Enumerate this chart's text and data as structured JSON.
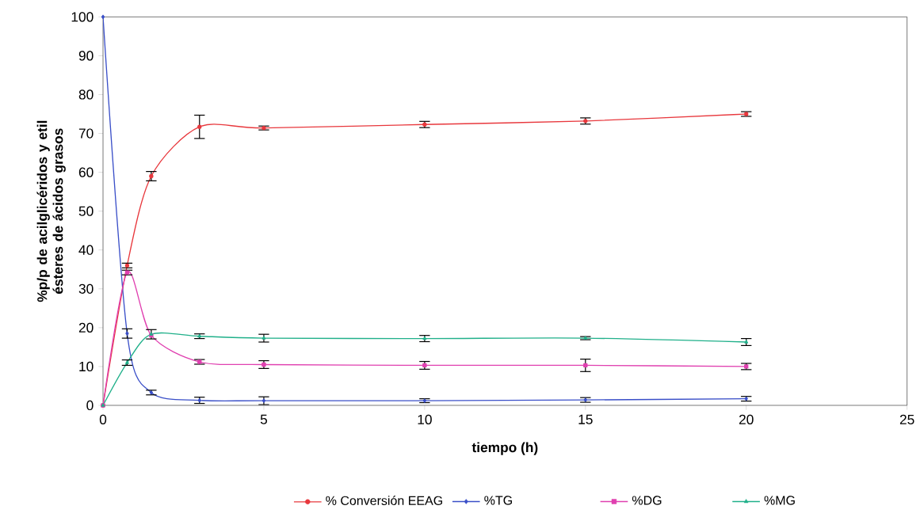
{
  "chart_data": {
    "type": "line",
    "xlabel": "tiempo (h)",
    "ylabel": "%p/p de acilglicéridos y etil ésteres de ácidos grasos",
    "x": [
      0,
      0.75,
      1.5,
      3,
      5,
      10,
      15,
      20
    ],
    "xlim": [
      0,
      25
    ],
    "xticks": [
      0,
      5,
      10,
      15,
      20,
      25
    ],
    "ylim": [
      0,
      100
    ],
    "yticks": [
      0,
      10,
      20,
      30,
      40,
      50,
      60,
      70,
      80,
      90,
      100
    ],
    "grid": false,
    "legend": "bottom",
    "series": [
      {
        "name": "% Conversión EEAG",
        "color": "#e8383d",
        "marker": "circle",
        "values": [
          0,
          36,
          59,
          71.7,
          71.4,
          72.3,
          73.2,
          75
        ],
        "errors": [
          null,
          0.6,
          1.2,
          3,
          0.5,
          0.8,
          0.8,
          0.6
        ]
      },
      {
        "name": "%TG",
        "color": "#3a4fc8",
        "marker": "diamond",
        "values": [
          100,
          18.5,
          3.3,
          1.3,
          1.2,
          1.2,
          1.4,
          1.7
        ],
        "errors": [
          null,
          1.2,
          0.6,
          0.8,
          1,
          0.5,
          0.6,
          0.6
        ]
      },
      {
        "name": "%DG",
        "color": "#e040b0",
        "marker": "square",
        "values": [
          0,
          34.2,
          18,
          11.2,
          10.5,
          10.3,
          10.3,
          10
        ],
        "errors": [
          null,
          0.6,
          null,
          0.6,
          1,
          1,
          1.6,
          0.8
        ]
      },
      {
        "name": "%MG",
        "color": "#20b08a",
        "marker": "triangle",
        "values": [
          0,
          11,
          18.3,
          17.8,
          17.3,
          17.2,
          17.3,
          16.3
        ],
        "errors": [
          null,
          0.7,
          1.2,
          0.6,
          1,
          0.8,
          0.4,
          0.9
        ]
      }
    ]
  }
}
